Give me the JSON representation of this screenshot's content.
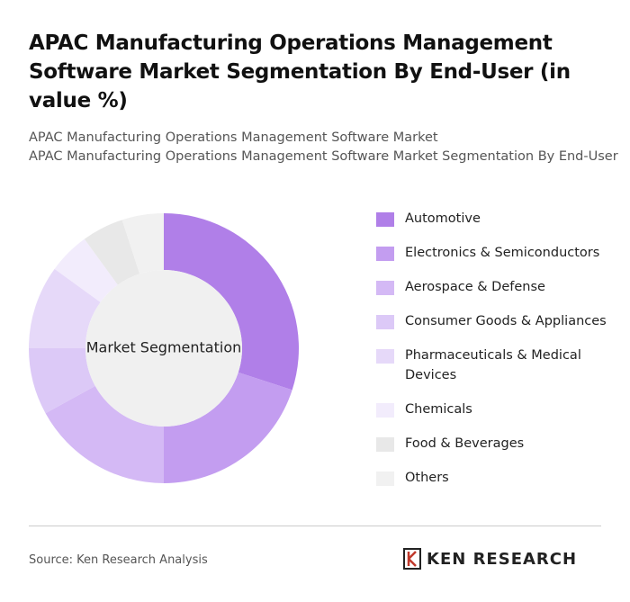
{
  "chart_data": {
    "type": "pie",
    "title": "APAC Manufacturing Operations Management Software Market Segmentation By End-User (in value %)",
    "subtitle": [
      "APAC Manufacturing Operations Management Software Market",
      "APAC Manufacturing Operations Management Software Market Segmentation By End-User"
    ],
    "center_label": "Market Segmentation",
    "categories": [
      "Automotive",
      "Electronics & Semiconductors",
      "Aerospace & Defense",
      "Consumer Goods & Appliances",
      "Pharmaceuticals & Medical Devices",
      "Chemicals",
      "Food & Beverages",
      "Others"
    ],
    "values": [
      30,
      20,
      17,
      8,
      10,
      5,
      5,
      5
    ],
    "colors": [
      "#b07fe8",
      "#c39df0",
      "#d4b9f5",
      "#dcc9f7",
      "#e6d9f9",
      "#f2ecfc",
      "#e8e8e8",
      "#f1f1f1"
    ]
  },
  "footer": {
    "source": "Source: Ken Research Analysis",
    "logo": "KEN RESEARCH"
  }
}
